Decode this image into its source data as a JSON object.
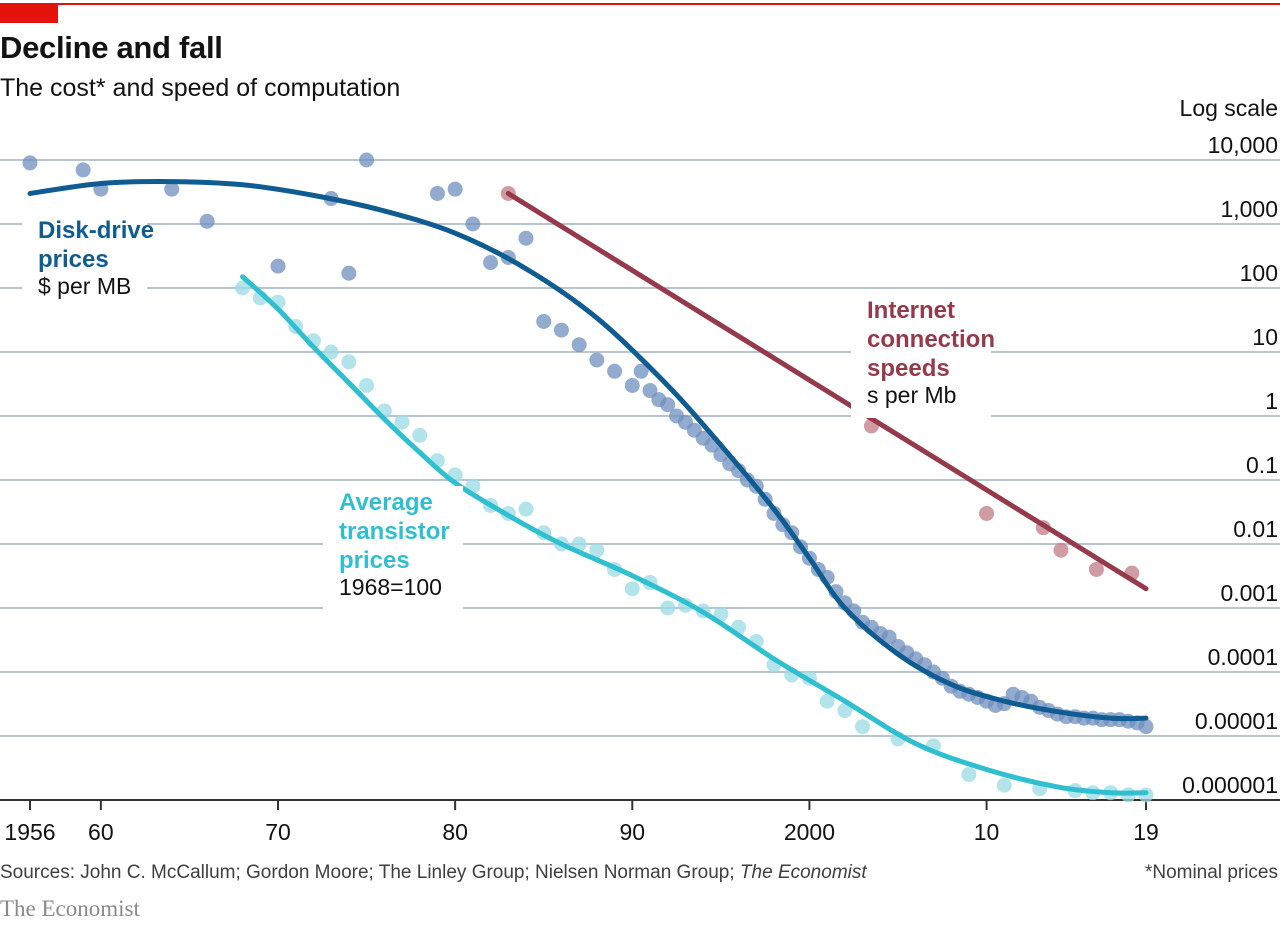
{
  "header": {
    "title": "Decline and fall",
    "subtitle": "The cost* and speed of computation",
    "scale_note": "Log scale"
  },
  "footer": {
    "sources_prefix": "Sources: John C. McCallum; Gordon Moore; The Linley Group; Nielsen Norman Group; ",
    "sources_italic": "The Economist",
    "footnote": "*Nominal prices",
    "brand": "The Economist"
  },
  "colors": {
    "accent_red": "#e3120b",
    "disk": "#0f5c92",
    "disk_dots": "#6f8fbf",
    "transistor": "#30bfd1",
    "transistor_dots": "#9bdbe4",
    "internet": "#963a4b",
    "internet_dots": "#c27a86",
    "grid": "#b7c6d3",
    "axis": "#333333"
  },
  "chart_data": {
    "type": "line",
    "scale": "log",
    "grid": true,
    "xlim": [
      1956,
      2019
    ],
    "ylim": [
      1e-06,
      10000
    ],
    "x_ticks": [
      {
        "value": 1956,
        "label": "1956"
      },
      {
        "value": 1960,
        "label": "60"
      },
      {
        "value": 1970,
        "label": "70"
      },
      {
        "value": 1980,
        "label": "80"
      },
      {
        "value": 1990,
        "label": "90"
      },
      {
        "value": 2000,
        "label": "2000"
      },
      {
        "value": 2010,
        "label": "10"
      },
      {
        "value": 2019,
        "label": "19"
      }
    ],
    "y_ticks": [
      {
        "value": 10000,
        "label": "10,000"
      },
      {
        "value": 1000,
        "label": "1,000"
      },
      {
        "value": 100,
        "label": "100"
      },
      {
        "value": 10,
        "label": "10"
      },
      {
        "value": 1,
        "label": "1"
      },
      {
        "value": 0.1,
        "label": "0.1"
      },
      {
        "value": 0.01,
        "label": "0.01"
      },
      {
        "value": 0.001,
        "label": "0.001"
      },
      {
        "value": 0.0001,
        "label": "0.0001"
      },
      {
        "value": 1e-05,
        "label": "0.00001"
      },
      {
        "value": 1e-06,
        "label": "0.000001"
      }
    ],
    "series": [
      {
        "key": "disk",
        "name": "Disk-drive prices",
        "unit": "$ per MB",
        "trend": [
          [
            1956,
            3000
          ],
          [
            1960,
            4300
          ],
          [
            1964,
            4600
          ],
          [
            1968,
            4100
          ],
          [
            1972,
            2800
          ],
          [
            1976,
            1600
          ],
          [
            1980,
            720
          ],
          [
            1984,
            200
          ],
          [
            1988,
            34
          ],
          [
            1992,
            3
          ],
          [
            1995,
            0.35
          ],
          [
            1998,
            0.035
          ],
          [
            2000,
            0.006
          ],
          [
            2002,
            0.001
          ],
          [
            2005,
            0.00019
          ],
          [
            2008,
            6.4e-05
          ],
          [
            2011,
            3.5e-05
          ],
          [
            2014,
            2.4e-05
          ],
          [
            2017,
            1.9e-05
          ],
          [
            2019,
            1.9e-05
          ]
        ],
        "points": [
          [
            1956,
            9000
          ],
          [
            1959,
            7000
          ],
          [
            1960,
            3500
          ],
          [
            1964,
            3500
          ],
          [
            1966,
            1100
          ],
          [
            1970,
            220
          ],
          [
            1973,
            2500
          ],
          [
            1974,
            170
          ],
          [
            1975,
            10000
          ],
          [
            1979,
            3000
          ],
          [
            1980,
            3500
          ],
          [
            1981,
            1000
          ],
          [
            1982,
            250
          ],
          [
            1983,
            300
          ],
          [
            1984,
            600
          ],
          [
            1985,
            30
          ],
          [
            1986,
            22
          ],
          [
            1987,
            13
          ],
          [
            1988,
            7.5
          ],
          [
            1989,
            5
          ],
          [
            1990,
            3
          ],
          [
            1990.5,
            5
          ],
          [
            1991,
            2.5
          ],
          [
            1991.5,
            1.8
          ],
          [
            1992,
            1.5
          ],
          [
            1992.5,
            1
          ],
          [
            1993,
            0.8
          ],
          [
            1993.5,
            0.6
          ],
          [
            1994,
            0.45
          ],
          [
            1994.5,
            0.35
          ],
          [
            1995,
            0.25
          ],
          [
            1995.5,
            0.18
          ],
          [
            1996,
            0.14
          ],
          [
            1996.5,
            0.1
          ],
          [
            1997,
            0.08
          ],
          [
            1997.5,
            0.05
          ],
          [
            1998,
            0.03
          ],
          [
            1998.5,
            0.02
          ],
          [
            1999,
            0.015
          ],
          [
            1999.5,
            0.009
          ],
          [
            2000,
            0.006
          ],
          [
            2000.5,
            0.004
          ],
          [
            2001,
            0.003
          ],
          [
            2001.5,
            0.0018
          ],
          [
            2002,
            0.0012
          ],
          [
            2002.5,
            0.0009
          ],
          [
            2003,
            0.0006
          ],
          [
            2003.5,
            0.0005
          ],
          [
            2004,
            0.0004
          ],
          [
            2004.5,
            0.00035
          ],
          [
            2005,
            0.00025
          ],
          [
            2005.5,
            0.0002
          ],
          [
            2006,
            0.00016
          ],
          [
            2006.5,
            0.00013
          ],
          [
            2007,
            0.0001
          ],
          [
            2007.5,
            8e-05
          ],
          [
            2008,
            6e-05
          ],
          [
            2008.5,
            5e-05
          ],
          [
            2009,
            4.5e-05
          ],
          [
            2009.5,
            4e-05
          ],
          [
            2010,
            3.5e-05
          ],
          [
            2010.5,
            3e-05
          ],
          [
            2011,
            3.2e-05
          ],
          [
            2011.5,
            4.5e-05
          ],
          [
            2012,
            4e-05
          ],
          [
            2012.5,
            3.5e-05
          ],
          [
            2013,
            2.8e-05
          ],
          [
            2013.5,
            2.5e-05
          ],
          [
            2014,
            2.2e-05
          ],
          [
            2014.5,
            2e-05
          ],
          [
            2015,
            2e-05
          ],
          [
            2015.5,
            1.9e-05
          ],
          [
            2016,
            1.9e-05
          ],
          [
            2016.5,
            1.8e-05
          ],
          [
            2017,
            1.8e-05
          ],
          [
            2017.5,
            1.8e-05
          ],
          [
            2018,
            1.7e-05
          ],
          [
            2018.5,
            1.6e-05
          ],
          [
            2019,
            1.4e-05
          ]
        ]
      },
      {
        "key": "transistor",
        "name": "Average transistor prices",
        "unit": "1968=100",
        "trend": [
          [
            1968,
            150
          ],
          [
            1970,
            47
          ],
          [
            1972,
            12
          ],
          [
            1974,
            3.3
          ],
          [
            1976,
            0.9
          ],
          [
            1978,
            0.27
          ],
          [
            1980,
            0.09
          ],
          [
            1983,
            0.028
          ],
          [
            1986,
            0.01
          ],
          [
            1990,
            0.0032
          ],
          [
            1994,
            0.00086
          ],
          [
            1998,
            0.00016
          ],
          [
            2002,
            3.5e-05
          ],
          [
            2006,
            7.6e-06
          ],
          [
            2010,
            3e-06
          ],
          [
            2014,
            1.6e-06
          ],
          [
            2017,
            1.3e-06
          ],
          [
            2019,
            1.3e-06
          ]
        ],
        "points": [
          [
            1968,
            100
          ],
          [
            1969,
            70
          ],
          [
            1970,
            60
          ],
          [
            1971,
            25
          ],
          [
            1972,
            15
          ],
          [
            1973,
            10
          ],
          [
            1974,
            7
          ],
          [
            1975,
            3
          ],
          [
            1976,
            1.2
          ],
          [
            1977,
            0.8
          ],
          [
            1978,
            0.5
          ],
          [
            1979,
            0.2
          ],
          [
            1980,
            0.12
          ],
          [
            1981,
            0.08
          ],
          [
            1982,
            0.04
          ],
          [
            1983,
            0.03
          ],
          [
            1984,
            0.035
          ],
          [
            1985,
            0.015
          ],
          [
            1986,
            0.01
          ],
          [
            1987,
            0.01
          ],
          [
            1988,
            0.008
          ],
          [
            1989,
            0.004
          ],
          [
            1990,
            0.002
          ],
          [
            1991,
            0.0025
          ],
          [
            1992,
            0.001
          ],
          [
            1993,
            0.0011
          ],
          [
            1994,
            0.0009
          ],
          [
            1995,
            0.0008
          ],
          [
            1996,
            0.0005
          ],
          [
            1997,
            0.0003
          ],
          [
            1998,
            0.00013
          ],
          [
            1999,
            9e-05
          ],
          [
            2000,
            8e-05
          ],
          [
            2001,
            3.5e-05
          ],
          [
            2002,
            2.5e-05
          ],
          [
            2003,
            1.4e-05
          ],
          [
            2005,
            9e-06
          ],
          [
            2007,
            7e-06
          ],
          [
            2009,
            2.5e-06
          ],
          [
            2011,
            1.7e-06
          ],
          [
            2013,
            1.5e-06
          ],
          [
            2015,
            1.4e-06
          ],
          [
            2016,
            1.3e-06
          ],
          [
            2017,
            1.3e-06
          ],
          [
            2018,
            1.2e-06
          ],
          [
            2019,
            1.2e-06
          ]
        ]
      },
      {
        "key": "internet",
        "name": "Internet connection speeds",
        "unit": "s per Mb",
        "trend": [
          [
            1983,
            3000
          ],
          [
            2019,
            0.002
          ]
        ],
        "points": [
          [
            1983,
            3000
          ],
          [
            2003.5,
            0.7
          ],
          [
            2010,
            0.03
          ],
          [
            2013.2,
            0.018
          ],
          [
            2014.2,
            0.008
          ],
          [
            2016.2,
            0.004
          ],
          [
            2018.2,
            0.0035
          ]
        ]
      }
    ]
  }
}
